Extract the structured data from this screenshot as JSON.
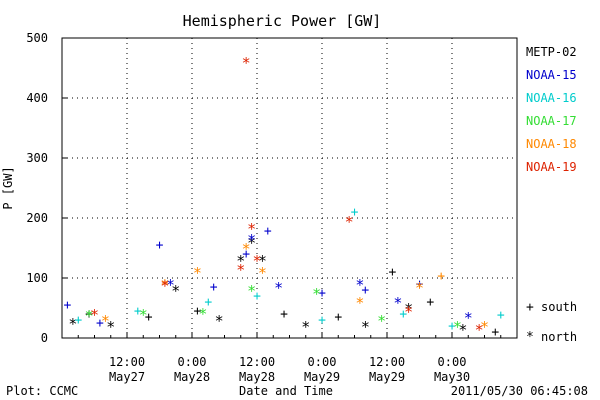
{
  "chart_data": {
    "type": "scatter",
    "title": "Hemispheric Power [GW]",
    "ylabel": "P [GW]",
    "xlabel": "Date and Time",
    "ylim": [
      0,
      500
    ],
    "yticks": [
      0,
      100,
      200,
      300,
      400,
      500
    ],
    "xlim": [
      "2011-05-27 00:00",
      "2011-05-30 12:00"
    ],
    "xticks": [
      {
        "x": "2011-05-27 12:00",
        "line1": "12:00",
        "line2": "May27"
      },
      {
        "x": "2011-05-28 00:00",
        "line1": "0:00",
        "line2": "May28"
      },
      {
        "x": "2011-05-28 12:00",
        "line1": "12:00",
        "line2": "May28"
      },
      {
        "x": "2011-05-29 00:00",
        "line1": "0:00",
        "line2": "May29"
      },
      {
        "x": "2011-05-29 12:00",
        "line1": "12:00",
        "line2": "May29"
      },
      {
        "x": "2011-05-30 00:00",
        "line1": "0:00",
        "line2": "May30"
      }
    ],
    "footer_left": "Plot: CCMC",
    "footer_right": "2011/05/30 06:45:08",
    "marker_legend": [
      {
        "marker": "+",
        "label": "south"
      },
      {
        "marker": "*",
        "label": "north"
      }
    ],
    "series": [
      {
        "name": "METP-02",
        "color": "#000000",
        "points": [
          [
            "2011-05-27 02:00",
            25,
            "*"
          ],
          [
            "2011-05-27 05:00",
            40,
            "+"
          ],
          [
            "2011-05-27 09:00",
            20,
            "*"
          ],
          [
            "2011-05-27 16:00",
            35,
            "+"
          ],
          [
            "2011-05-27 21:00",
            80,
            "*"
          ],
          [
            "2011-05-28 01:00",
            45,
            "+"
          ],
          [
            "2011-05-28 05:00",
            30,
            "*"
          ],
          [
            "2011-05-28 09:00",
            130,
            "*"
          ],
          [
            "2011-05-28 11:00",
            160,
            "*"
          ],
          [
            "2011-05-28 13:00",
            130,
            "*"
          ],
          [
            "2011-05-28 17:00",
            40,
            "+"
          ],
          [
            "2011-05-28 21:00",
            20,
            "*"
          ],
          [
            "2011-05-29 03:00",
            35,
            "+"
          ],
          [
            "2011-05-29 08:00",
            20,
            "*"
          ],
          [
            "2011-05-29 13:00",
            110,
            "+"
          ],
          [
            "2011-05-29 16:00",
            50,
            "*"
          ],
          [
            "2011-05-29 20:00",
            60,
            "+"
          ],
          [
            "2011-05-30 02:00",
            15,
            "*"
          ],
          [
            "2011-05-30 08:00",
            10,
            "+"
          ]
        ]
      },
      {
        "name": "NOAA-15",
        "color": "#0000cc",
        "points": [
          [
            "2011-05-27 01:00",
            55,
            "+"
          ],
          [
            "2011-05-27 07:00",
            25,
            "+"
          ],
          [
            "2011-05-27 18:00",
            155,
            "+"
          ],
          [
            "2011-05-27 20:00",
            90,
            "*"
          ],
          [
            "2011-05-28 04:00",
            85,
            "+"
          ],
          [
            "2011-05-28 10:00",
            140,
            "+"
          ],
          [
            "2011-05-28 11:00",
            165,
            "*"
          ],
          [
            "2011-05-28 14:00",
            178,
            "+"
          ],
          [
            "2011-05-28 16:00",
            85,
            "*"
          ],
          [
            "2011-05-29 00:00",
            75,
            "+"
          ],
          [
            "2011-05-29 07:00",
            90,
            "*"
          ],
          [
            "2011-05-29 08:00",
            80,
            "+"
          ],
          [
            "2011-05-29 14:00",
            60,
            "*"
          ],
          [
            "2011-05-29 18:00",
            90,
            "+"
          ],
          [
            "2011-05-30 03:00",
            35,
            "*"
          ]
        ]
      },
      {
        "name": "NOAA-16",
        "color": "#00cccc",
        "points": [
          [
            "2011-05-27 03:00",
            30,
            "+"
          ],
          [
            "2011-05-27 14:00",
            45,
            "+"
          ],
          [
            "2011-05-28 03:00",
            60,
            "+"
          ],
          [
            "2011-05-28 12:00",
            70,
            "+"
          ],
          [
            "2011-05-29 00:00",
            30,
            "+"
          ],
          [
            "2011-05-29 06:00",
            210,
            "+"
          ],
          [
            "2011-05-29 15:00",
            40,
            "+"
          ],
          [
            "2011-05-30 00:00",
            20,
            "+"
          ],
          [
            "2011-05-30 09:00",
            38,
            "+"
          ]
        ]
      },
      {
        "name": "NOAA-17",
        "color": "#33dd33",
        "points": [
          [
            "2011-05-27 05:00",
            38,
            "*"
          ],
          [
            "2011-05-27 15:00",
            40,
            "*"
          ],
          [
            "2011-05-28 02:00",
            42,
            "*"
          ],
          [
            "2011-05-28 11:00",
            80,
            "*"
          ],
          [
            "2011-05-28 23:00",
            75,
            "*"
          ],
          [
            "2011-05-29 11:00",
            30,
            "*"
          ],
          [
            "2011-05-30 01:00",
            20,
            "*"
          ]
        ]
      },
      {
        "name": "NOAA-18",
        "color": "#ff8800",
        "points": [
          [
            "2011-05-27 08:00",
            30,
            "*"
          ],
          [
            "2011-05-27 19:00",
            90,
            "*"
          ],
          [
            "2011-05-28 01:00",
            110,
            "*"
          ],
          [
            "2011-05-28 10:00",
            150,
            "*"
          ],
          [
            "2011-05-28 13:00",
            110,
            "*"
          ],
          [
            "2011-05-29 07:00",
            60,
            "*"
          ],
          [
            "2011-05-29 18:00",
            85,
            "*"
          ],
          [
            "2011-05-29 22:00",
            103,
            "+"
          ],
          [
            "2011-05-30 06:00",
            20,
            "*"
          ]
        ]
      },
      {
        "name": "NOAA-19",
        "color": "#dd2200",
        "points": [
          [
            "2011-05-27 06:00",
            40,
            "*"
          ],
          [
            "2011-05-27 19:00",
            88,
            "*"
          ],
          [
            "2011-05-28 09:00",
            115,
            "*"
          ],
          [
            "2011-05-28 10:00",
            460,
            "*"
          ],
          [
            "2011-05-28 11:00",
            183,
            "*"
          ],
          [
            "2011-05-28 12:00",
            130,
            "*"
          ],
          [
            "2011-05-29 05:00",
            195,
            "*"
          ],
          [
            "2011-05-29 16:00",
            45,
            "*"
          ],
          [
            "2011-05-30 05:00",
            15,
            "*"
          ]
        ]
      }
    ]
  }
}
